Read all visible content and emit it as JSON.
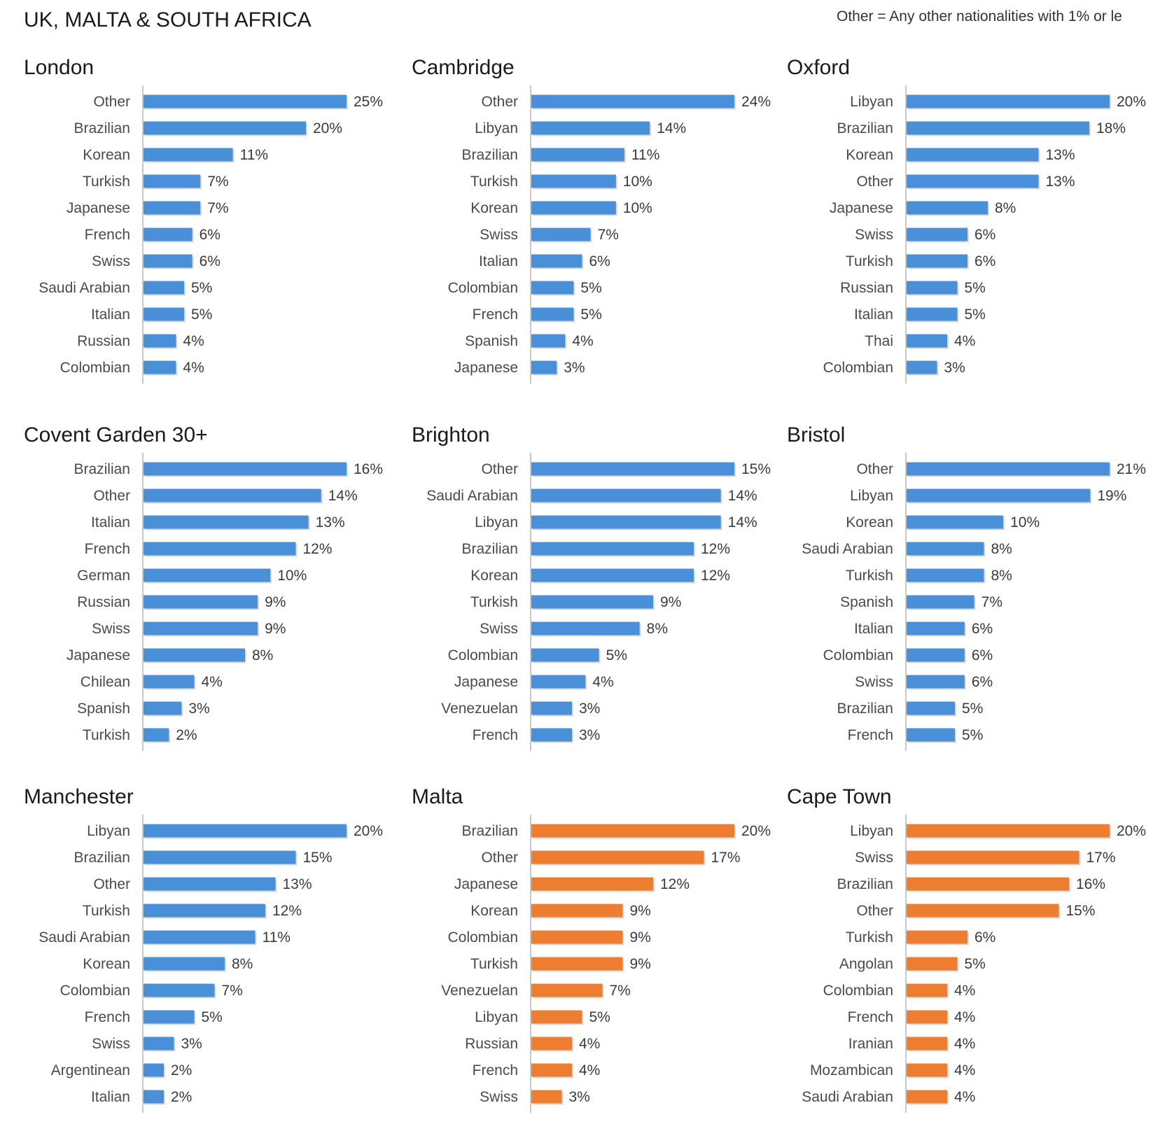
{
  "page": {
    "title": "UK, MALTA & SOUTH AFRICA",
    "note": "Other = Any other nationalities with 1% or le"
  },
  "colors": {
    "uk": "#4a90d9",
    "other": "#ed7d31"
  },
  "chart_data": [
    {
      "type": "bar",
      "orientation": "horizontal",
      "title": "London",
      "color": "uk",
      "xlim": [
        0,
        25
      ],
      "categories": [
        "Other",
        "Brazilian",
        "Korean",
        "Turkish",
        "Japanese",
        "French",
        "Swiss",
        "Saudi Arabian",
        "Italian",
        "Russian",
        "Colombian"
      ],
      "values": [
        25,
        20,
        11,
        7,
        7,
        6,
        6,
        5,
        5,
        4,
        4
      ],
      "labels": [
        "25%",
        "20%",
        "11%",
        "7%",
        "7%",
        "6%",
        "6%",
        "5%",
        "5%",
        "4%",
        "4%"
      ]
    },
    {
      "type": "bar",
      "orientation": "horizontal",
      "title": "Cambridge",
      "color": "uk",
      "xlim": [
        0,
        24
      ],
      "categories": [
        "Other",
        "Libyan",
        "Brazilian",
        "Turkish",
        "Korean",
        "Swiss",
        "Italian",
        "Colombian",
        "French",
        "Spanish",
        "Japanese"
      ],
      "values": [
        24,
        14,
        11,
        10,
        10,
        7,
        6,
        5,
        5,
        4,
        3
      ],
      "labels": [
        "24%",
        "14%",
        "11%",
        "10%",
        "10%",
        "7%",
        "6%",
        "5%",
        "5%",
        "4%",
        "3%"
      ]
    },
    {
      "type": "bar",
      "orientation": "horizontal",
      "title": "Oxford",
      "color": "uk",
      "xlim": [
        0,
        20
      ],
      "categories": [
        "Libyan",
        "Brazilian",
        "Korean",
        "Other",
        "Japanese",
        "Swiss",
        "Turkish",
        "Russian",
        "Italian",
        "Thai",
        "Colombian"
      ],
      "values": [
        20,
        18,
        13,
        13,
        8,
        6,
        6,
        5,
        5,
        4,
        3
      ],
      "labels": [
        "20%",
        "18%",
        "13%",
        "13%",
        "8%",
        "6%",
        "6%",
        "5%",
        "5%",
        "4%",
        "3%"
      ]
    },
    {
      "type": "bar",
      "orientation": "horizontal",
      "title": "Covent Garden 30+",
      "color": "uk",
      "xlim": [
        0,
        16
      ],
      "categories": [
        "Brazilian",
        "Other",
        "Italian",
        "French",
        "German",
        "Russian",
        "Swiss",
        "Japanese",
        "Chilean",
        "Spanish",
        "Turkish"
      ],
      "values": [
        16,
        14,
        13,
        12,
        10,
        9,
        9,
        8,
        4,
        3,
        2
      ],
      "labels": [
        "16%",
        "14%",
        "13%",
        "12%",
        "10%",
        "9%",
        "9%",
        "8%",
        "4%",
        "3%",
        "2%"
      ]
    },
    {
      "type": "bar",
      "orientation": "horizontal",
      "title": "Brighton",
      "color": "uk",
      "xlim": [
        0,
        15
      ],
      "categories": [
        "Other",
        "Saudi Arabian",
        "Libyan",
        "Brazilian",
        "Korean",
        "Turkish",
        "Swiss",
        "Colombian",
        "Japanese",
        "Venezuelan",
        "French"
      ],
      "values": [
        15,
        14,
        14,
        12,
        12,
        9,
        8,
        5,
        4,
        3,
        3
      ],
      "labels": [
        "15%",
        "14%",
        "14%",
        "12%",
        "12%",
        "9%",
        "8%",
        "5%",
        "4%",
        "3%",
        "3%"
      ]
    },
    {
      "type": "bar",
      "orientation": "horizontal",
      "title": "Bristol",
      "color": "uk",
      "xlim": [
        0,
        21
      ],
      "categories": [
        "Other",
        "Libyan",
        "Korean",
        "Saudi Arabian",
        "Turkish",
        "Spanish",
        "Italian",
        "Colombian",
        "Swiss",
        "Brazilian",
        "French"
      ],
      "values": [
        21,
        19,
        10,
        8,
        8,
        7,
        6,
        6,
        6,
        5,
        5
      ],
      "labels": [
        "21%",
        "19%",
        "10%",
        "8%",
        "8%",
        "7%",
        "6%",
        "6%",
        "6%",
        "5%",
        "5%"
      ]
    },
    {
      "type": "bar",
      "orientation": "horizontal",
      "title": "Manchester",
      "color": "uk",
      "xlim": [
        0,
        20
      ],
      "categories": [
        "Libyan",
        "Brazilian",
        "Other",
        "Turkish",
        "Saudi Arabian",
        "Korean",
        "Colombian",
        "French",
        "Swiss",
        "Argentinean",
        "Italian"
      ],
      "values": [
        20,
        15,
        13,
        12,
        11,
        8,
        7,
        5,
        3,
        2,
        2
      ],
      "labels": [
        "20%",
        "15%",
        "13%",
        "12%",
        "11%",
        "8%",
        "7%",
        "5%",
        "3%",
        "2%",
        "2%"
      ]
    },
    {
      "type": "bar",
      "orientation": "horizontal",
      "title": "Malta",
      "color": "other",
      "xlim": [
        0,
        20
      ],
      "categories": [
        "Brazilian",
        "Other",
        "Japanese",
        "Korean",
        "Colombian",
        "Turkish",
        "Venezuelan",
        "Libyan",
        "Russian",
        "French",
        "Swiss"
      ],
      "values": [
        20,
        17,
        12,
        9,
        9,
        9,
        7,
        5,
        4,
        4,
        3
      ],
      "labels": [
        "20%",
        "17%",
        "12%",
        "9%",
        "9%",
        "9%",
        "7%",
        "5%",
        "4%",
        "4%",
        "3%"
      ]
    },
    {
      "type": "bar",
      "orientation": "horizontal",
      "title": "Cape Town",
      "color": "other",
      "xlim": [
        0,
        20
      ],
      "categories": [
        "Libyan",
        "Swiss",
        "Brazilian",
        "Other",
        "Turkish",
        "Angolan",
        "Colombian",
        "French",
        "Iranian",
        "Mozambican",
        "Saudi Arabian"
      ],
      "values": [
        20,
        17,
        16,
        15,
        6,
        5,
        4,
        4,
        4,
        4,
        4
      ],
      "labels": [
        "20%",
        "17%",
        "16%",
        "15%",
        "6%",
        "5%",
        "4%",
        "4%",
        "4%",
        "4%",
        "4%"
      ]
    }
  ]
}
